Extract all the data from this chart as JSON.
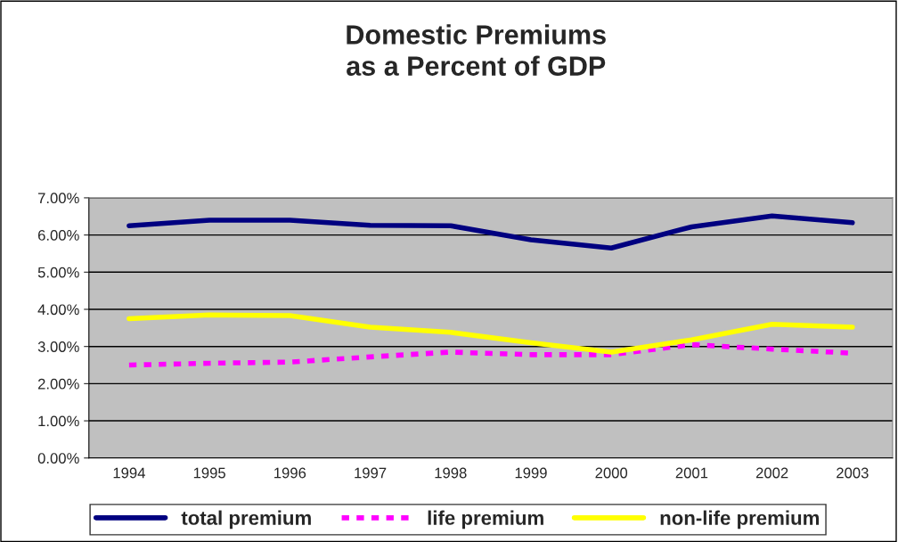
{
  "chart_data": {
    "type": "line",
    "title": "Domestic Premiums\nas a Percent of GDP",
    "categories": [
      "1994",
      "1995",
      "1996",
      "1997",
      "1998",
      "1999",
      "2000",
      "2001",
      "2002",
      "2003"
    ],
    "series": [
      {
        "name": "total premium",
        "color": "#000080",
        "line_style": "solid",
        "values": [
          6.25,
          6.4,
          6.4,
          6.26,
          6.25,
          5.87,
          5.65,
          6.22,
          6.51,
          6.33
        ]
      },
      {
        "name": "life premium",
        "color": "#ff00ff",
        "line_style": "dotted",
        "values": [
          2.5,
          2.55,
          2.58,
          2.72,
          2.85,
          2.78,
          2.78,
          3.05,
          2.93,
          2.82
        ]
      },
      {
        "name": "non-life premium",
        "color": "#ffff00",
        "line_style": "solid",
        "values": [
          3.75,
          3.85,
          3.83,
          3.52,
          3.38,
          3.1,
          2.85,
          3.18,
          3.6,
          3.52
        ]
      }
    ],
    "ylim": [
      0,
      7
    ],
    "yticks": [
      {
        "value": 0,
        "label": "0.00%"
      },
      {
        "value": 1,
        "label": "1.00%"
      },
      {
        "value": 2,
        "label": "2.00%"
      },
      {
        "value": 3,
        "label": "3.00%"
      },
      {
        "value": 4,
        "label": "4.00%"
      },
      {
        "value": 5,
        "label": "5.00%"
      },
      {
        "value": 6,
        "label": "6.00%"
      },
      {
        "value": 7,
        "label": "7.00%"
      }
    ],
    "grid": "y",
    "legend": "bottom",
    "marker": "none"
  }
}
